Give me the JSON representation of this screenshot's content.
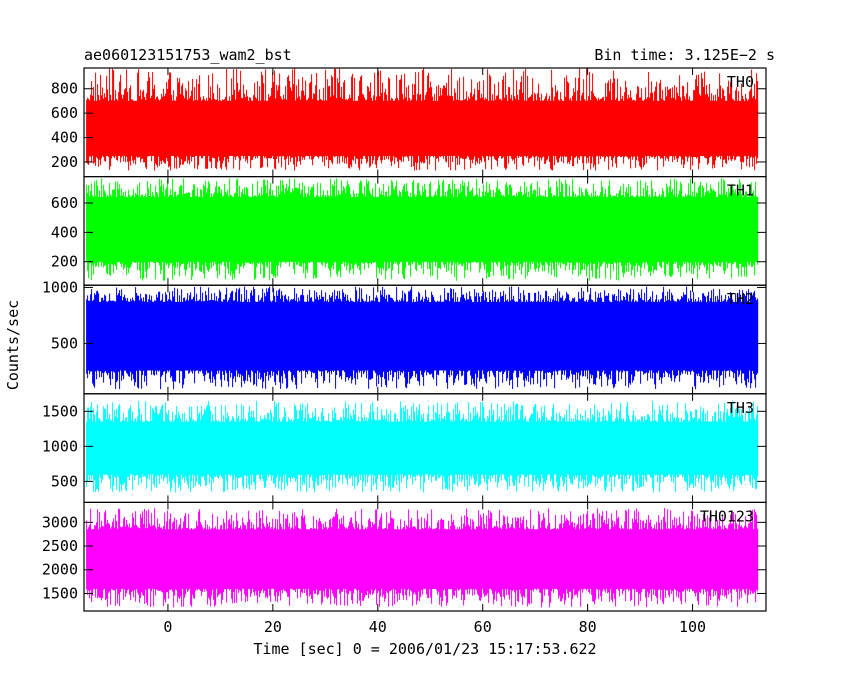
{
  "header": {
    "title": "ae060123151753_wam2_bst",
    "bin_time": "Bin time: 3.125E−2 s"
  },
  "axes": {
    "ylabel": "Counts/sec",
    "xlabel": "Time [sec] 0 = 2006/01/23 15:17:53.622"
  },
  "chart_data": [
    {
      "type": "line",
      "series_label": "TH0",
      "color": "#ff0000",
      "xlim": [
        -16,
        114
      ],
      "ylim": [
        80,
        970
      ],
      "yticks": [
        200,
        400,
        600,
        800
      ],
      "ytick_labels": [
        "200",
        "400",
        "600",
        "800"
      ],
      "xticks": [
        0,
        20,
        40,
        60,
        80,
        100
      ],
      "x_range": [
        -15.5,
        112.5
      ],
      "band": {
        "low": 250,
        "high": 700
      },
      "spikes": {
        "min": 130,
        "max": 970
      }
    },
    {
      "type": "line",
      "series_label": "TH1",
      "color": "#00ff00",
      "xlim": [
        -16,
        114
      ],
      "ylim": [
        40,
        780
      ],
      "yticks": [
        200,
        400,
        600
      ],
      "ytick_labels": [
        "200",
        "400",
        "600"
      ],
      "xticks": [
        0,
        20,
        40,
        60,
        80,
        100
      ],
      "x_range": [
        -15.5,
        112.5
      ],
      "band": {
        "low": 200,
        "high": 640
      },
      "spikes": {
        "min": 70,
        "max": 770
      }
    },
    {
      "type": "line",
      "series_label": "TH2",
      "color": "#0000ff",
      "xlim": [
        -16,
        114
      ],
      "ylim": [
        50,
        1020
      ],
      "yticks": [
        500,
        1000
      ],
      "ytick_labels": [
        "500",
        "1000"
      ],
      "xticks": [
        0,
        20,
        40,
        60,
        80,
        100
      ],
      "x_range": [
        -15.5,
        112.5
      ],
      "band": {
        "low": 260,
        "high": 870
      },
      "spikes": {
        "min": 90,
        "max": 1010
      }
    },
    {
      "type": "line",
      "series_label": "TH3",
      "color": "#00ffff",
      "xlim": [
        -16,
        114
      ],
      "ylim": [
        200,
        1750
      ],
      "yticks": [
        500,
        1000,
        1500
      ],
      "ytick_labels": [
        "500",
        "1000",
        "1500"
      ],
      "xticks": [
        0,
        20,
        40,
        60,
        80,
        100
      ],
      "x_range": [
        -15.5,
        112.5
      ],
      "band": {
        "low": 600,
        "high": 1350
      },
      "spikes": {
        "min": 340,
        "max": 1650
      }
    },
    {
      "type": "line",
      "series_label": "TH0123",
      "color": "#ff00ff",
      "xlim": [
        -16,
        114
      ],
      "ylim": [
        1130,
        3420
      ],
      "yticks": [
        1500,
        2000,
        2500,
        3000
      ],
      "ytick_labels": [
        "1500",
        "2000",
        "2500",
        "3000"
      ],
      "xticks": [
        0,
        20,
        40,
        60,
        80,
        100
      ],
      "xtick_labels": [
        "0",
        "20",
        "40",
        "60",
        "80",
        "100"
      ],
      "x_range": [
        -15.5,
        112.5
      ],
      "band": {
        "low": 1600,
        "high": 2850
      },
      "spikes": {
        "min": 1200,
        "max": 3300
      }
    }
  ]
}
